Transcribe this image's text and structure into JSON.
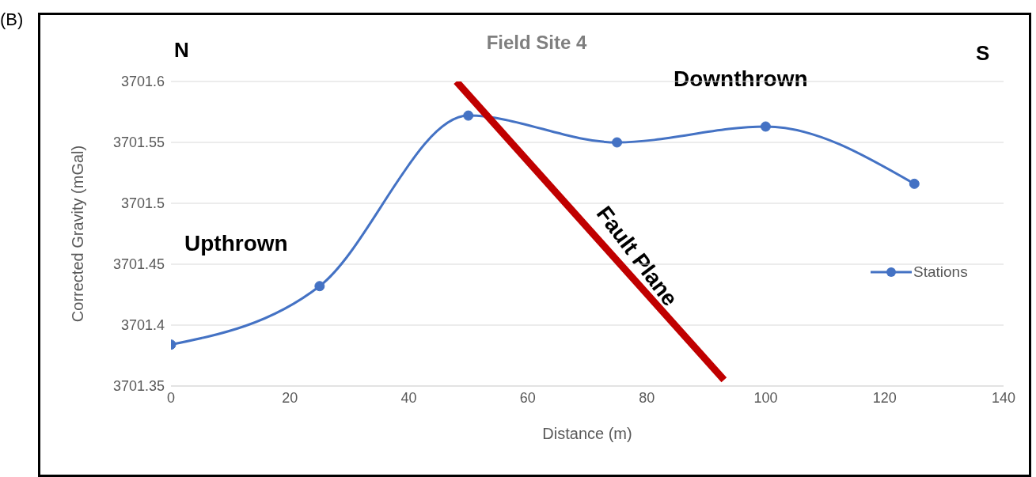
{
  "chart_data": {
    "type": "line",
    "title": "Field Site 4",
    "xlabel": "Distance (m)",
    "ylabel": "Corrected Gravity (mGal)",
    "series": [
      {
        "name": "Stations",
        "color": "#4472c4",
        "x": [
          0,
          25,
          50,
          75,
          100,
          125
        ],
        "values": [
          3701.384,
          3701.432,
          3701.572,
          3701.55,
          3701.563,
          3701.516
        ],
        "marker": "circle"
      },
      {
        "type": "line",
        "color": "#c00000",
        "x": [
          48,
          93
        ],
        "values": [
          3701.6,
          3701.355
        ],
        "marker": "none"
      }
    ],
    "xlim": [
      0,
      140
    ],
    "xticks": [
      0,
      20,
      40,
      60,
      80,
      100,
      120,
      140
    ],
    "ylim": [
      3701.35,
      3701.6
    ],
    "yticks": [
      3701.35,
      3701.4,
      3701.45,
      3701.5,
      3701.55,
      3701.6
    ],
    "grid": "y",
    "legend": "right",
    "annotations": [
      "Upthrown",
      "Downthrown",
      "Fault Plane",
      "(B)",
      "N",
      "S"
    ]
  }
}
